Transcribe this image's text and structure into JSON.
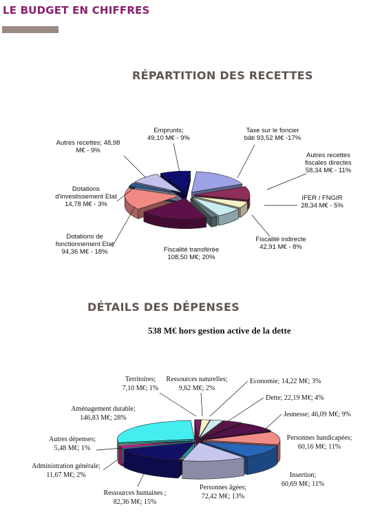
{
  "page": {
    "header": "LE BUDGET EN CHIFFRES",
    "section_recettes": "RÉPARTITION DES RECETTES",
    "section_depenses": "DÉTAILS DES DÉPENSES",
    "depenses_subtitle": "538 M€ hors gestion active de la dette"
  },
  "colors": {
    "header": "#8b1d6e",
    "section_title": "#5f5550",
    "rule": "#9a8a82"
  },
  "chart_data": [
    {
      "type": "pie",
      "title": "RÉPARTITION DES RECETTES",
      "unit": "M€",
      "slices": [
        {
          "label": "Taxe sur le foncier bâti 93,52 M€ -17%",
          "value": 93.52,
          "percent": 17,
          "color": "#9da2e6"
        },
        {
          "label": "Autres recettes fiscales directes 58,34 M€ - 11%",
          "value": 58.34,
          "percent": 11,
          "color": "#8e2e5a"
        },
        {
          "label": "IFER / FNGIR 28,34 M€ - 5%",
          "value": 28.34,
          "percent": 5,
          "color": "#f5f2c8"
        },
        {
          "label": "Fiscalité indirecte 42,91 M€ - 8%",
          "value": 42.91,
          "percent": 8,
          "color": "#c8ecf2"
        },
        {
          "label": "",
          "value": 10,
          "percent": 2,
          "color": "#6a7f86"
        },
        {
          "label": "Fiscalité transférée 108,50 M€; 20%",
          "value": 108.5,
          "percent": 20,
          "color": "#5e1148"
        },
        {
          "label": "Dotations de fonctionnement Etat 94,36 M€ - 18%",
          "value": 94.36,
          "percent": 18,
          "color": "#f08a84"
        },
        {
          "label": "Dotations d'investissement Etat 14,78 M€ - 3%",
          "value": 14.78,
          "percent": 3,
          "color": "#2a5d95"
        },
        {
          "label": "Autres recettes; 48,98 M€ - 9%",
          "value": 48.98,
          "percent": 9,
          "color": "#c2c2ec"
        },
        {
          "label": "Emprunts; 49,10 M€ - 9%",
          "value": 49.1,
          "percent": 9,
          "color": "#0e0e70"
        }
      ]
    },
    {
      "type": "pie",
      "title": "DÉTAILS DES DÉPENSES",
      "subtitle": "538 M€ hors gestion active de la dette",
      "unit": "M€",
      "slices": [
        {
          "label": "Ressources naturelles; 9,62 M€; 2%",
          "value": 9.62,
          "percent": 2,
          "color": "#f6f2c6"
        },
        {
          "label": "Economie; 14,22 M€; 3%",
          "value": 14.22,
          "percent": 3,
          "color": "#cdebf2"
        },
        {
          "label": "Dette; 22,19 M€; 4%",
          "value": 22.19,
          "percent": 4,
          "color": "#5c1447"
        },
        {
          "label": "Jeunesse; 46,09 M€; 9%",
          "value": 46.09,
          "percent": 9,
          "color": "#541048"
        },
        {
          "label": "Personnes handicapées; 60,16 M€; 11%",
          "value": 60.16,
          "percent": 11,
          "color": "#f08c86"
        },
        {
          "label": "Insertion; 60,69 M€; 11%",
          "value": 60.69,
          "percent": 11,
          "color": "#2a66b8"
        },
        {
          "label": "Personnes âgées; 72,42 M€; 13%",
          "value": 72.42,
          "percent": 13,
          "color": "#c6c6ee"
        },
        {
          "label": "Ressources humaines; 82,36 M€; 15%",
          "value": 82.36,
          "percent": 15,
          "color": "#131068"
        },
        {
          "label": "Administration générale; 11,67 M€; 2%",
          "value": 11.67,
          "percent": 2,
          "color": "#c9229a"
        },
        {
          "label": "Autres dépenses; 5,48 M€; 1%",
          "value": 5.48,
          "percent": 1,
          "color": "#e8e6a8"
        },
        {
          "label": "Aménagement durable; 146,83 M€; 28%",
          "value": 146.83,
          "percent": 28,
          "color": "#44eef0"
        },
        {
          "label": "Territoires; 7,10 M€; 1%",
          "value": 7.1,
          "percent": 1,
          "color": "#7a1f62"
        }
      ]
    }
  ]
}
